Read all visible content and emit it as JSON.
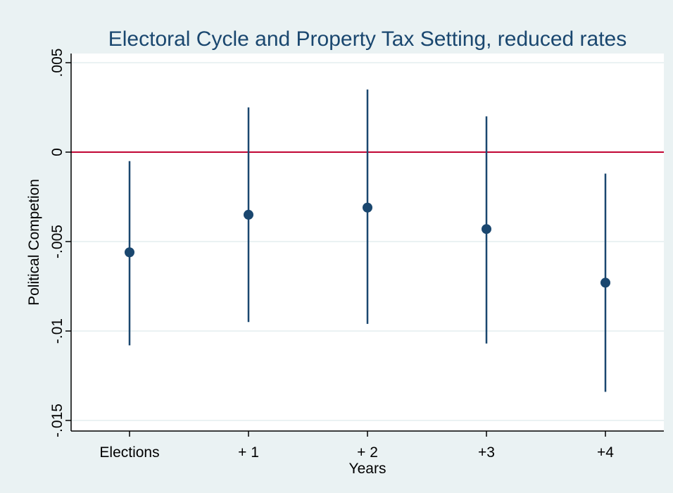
{
  "chart_data": {
    "type": "scatter",
    "title": "Electoral Cycle and Property Tax Setting, reduced rates",
    "xlabel": "Years",
    "ylabel": "Political Competion",
    "categories": [
      "Elections",
      "+ 1",
      "+ 2",
      "+3",
      "+4"
    ],
    "estimates": [
      -0.0056,
      -0.0035,
      -0.0031,
      -0.0043,
      -0.0073
    ],
    "ci_lower": [
      -0.0108,
      -0.0095,
      -0.0096,
      -0.0107,
      -0.0134
    ],
    "ci_upper": [
      -0.0005,
      0.0025,
      0.0035,
      0.002,
      -0.0012
    ],
    "y_ticks": [
      0.005,
      0,
      -0.005,
      -0.01,
      -0.015
    ],
    "y_tick_labels": [
      ".005",
      "0",
      "-.005",
      "-.01",
      "-.015"
    ],
    "ylim": [
      -0.016,
      0.0055
    ],
    "reference_line": 0,
    "grid": true,
    "colors": {
      "outer_background": "#eaf2f3",
      "plot_background": "#ffffff",
      "gridline": "#eaf2f3",
      "marker": "#1a476f",
      "reference_line": "#c10534",
      "axis": "#000000"
    }
  }
}
